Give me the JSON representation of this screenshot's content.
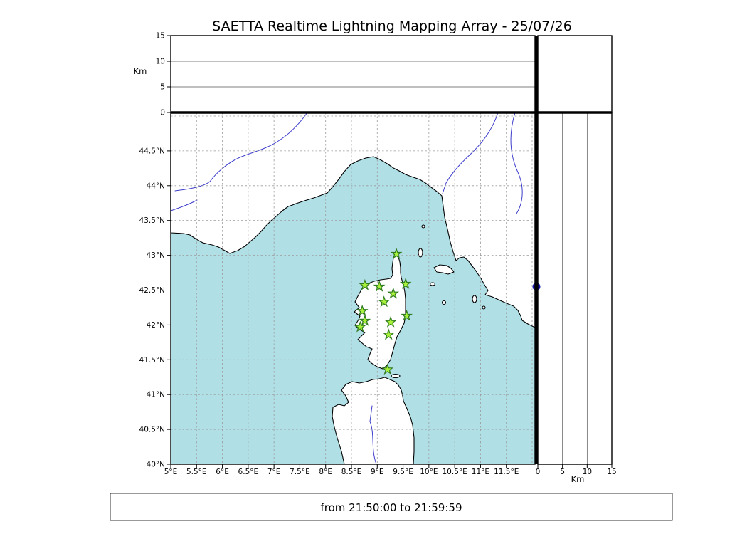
{
  "title": "SAETTA Realtime Lightning Mapping Array - 25/07/26",
  "footer": {
    "text": "from 21:50:00 to 21:59:59"
  },
  "axes": {
    "lon": {
      "tick_values": [
        5,
        5.5,
        6,
        6.5,
        7,
        7.5,
        8,
        8.5,
        9,
        9.5,
        10,
        10.5,
        11,
        11.5
      ],
      "tick_labels": [
        "5°E",
        "5.5°E",
        "6°E",
        "6.5°E",
        "7°E",
        "7.5°E",
        "8°E",
        "8.5°E",
        "9°E",
        "9.5°E",
        "10°E",
        "10.5°E",
        "11°E",
        "11.5°E"
      ]
    },
    "lat": {
      "tick_values": [
        40,
        40.5,
        41,
        41.5,
        42,
        42.5,
        43,
        43.5,
        44,
        44.5
      ],
      "tick_labels": [
        "40°N",
        "40.5°N",
        "41°N",
        "41.5°N",
        "42°N",
        "42.5°N",
        "43°N",
        "43.5°N",
        "44°N",
        "44.5°N"
      ]
    },
    "alt_left": {
      "label": "Km",
      "tick_values": [
        0,
        5,
        10,
        15
      ],
      "tick_labels": [
        "0",
        "5",
        "10",
        "15"
      ]
    },
    "alt_right": {
      "label": "Km",
      "tick_values": [
        0,
        5,
        10,
        15
      ],
      "tick_labels": [
        "0",
        "5",
        "10",
        "15"
      ]
    }
  },
  "colors": {
    "sea": "#b0e0e6",
    "land": "#ffffff",
    "coastline": "#000000",
    "river": "#3c3ccc",
    "grid": "#9a9a9a",
    "station_fill": "#a9f23c",
    "station_stroke": "#2f7a1f",
    "source_point": "#1b1bb3"
  },
  "chart_data": {
    "type": "scatter",
    "title": "SAETTA Realtime Lightning Mapping Array - 25/07/26",
    "time_window": "from 21:50:00 to 21:59:59",
    "panels": {
      "alt_vs_lon": {
        "y_label": "Km",
        "y_range_km": [
          0,
          15
        ],
        "x_range_deg_e": [
          5,
          12.05
        ],
        "gridlines_km": [
          5,
          10
        ],
        "points": []
      },
      "map": {
        "x_range_deg_e": [
          5,
          12.05
        ],
        "y_range_deg_n": [
          40,
          45.05
        ],
        "grid_step_deg": 0.5
      },
      "alt_vs_lat": {
        "x_label": "Km",
        "x_range_km": [
          0,
          15
        ],
        "y_range_deg_n": [
          40,
          45.05
        ],
        "gridlines_km": [
          5,
          10
        ],
        "points": [
          {
            "alt_km": 0,
            "lat_deg_n": 42.55
          }
        ]
      },
      "top_right": {
        "points": []
      }
    },
    "stations_lon_lat": [
      [
        9.37,
        43.02
      ],
      [
        8.76,
        42.57
      ],
      [
        9.04,
        42.55
      ],
      [
        9.55,
        42.59
      ],
      [
        9.31,
        42.45
      ],
      [
        9.13,
        42.33
      ],
      [
        8.71,
        42.2
      ],
      [
        8.76,
        42.06
      ],
      [
        8.67,
        41.97
      ],
      [
        9.57,
        42.13
      ],
      [
        9.26,
        42.04
      ],
      [
        9.22,
        41.86
      ],
      [
        9.2,
        41.36
      ]
    ]
  }
}
